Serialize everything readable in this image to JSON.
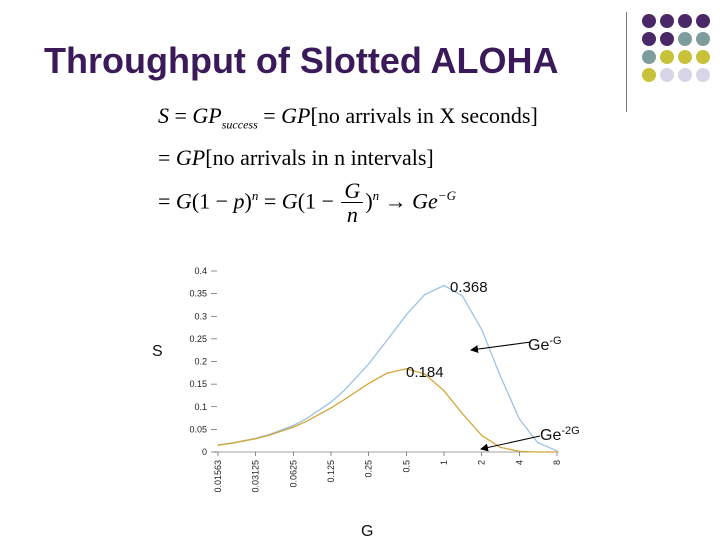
{
  "slide": {
    "title": "Throughput of Slotted ALOHA"
  },
  "decoration": {
    "dot_colors": {
      "purple": "#4a2766",
      "teal": "#7f9c9c",
      "olive": "#c8c23a",
      "lavender": "#d6d6e6"
    },
    "dot_rows": [
      [
        "purple",
        "purple",
        "purple",
        "purple"
      ],
      [
        "purple",
        "purple",
        "teal",
        "teal"
      ],
      [
        "teal",
        "olive",
        "olive",
        "olive"
      ],
      [
        "olive",
        "lavender",
        "lavender",
        "lavender"
      ]
    ]
  },
  "equations": {
    "line1": {
      "lhs": "S",
      "g1": "GP",
      "sub": "success",
      "g2": "GP",
      "text": "[no arrivals in X seconds]"
    },
    "line2": {
      "g": "GP",
      "text": "[no arrivals in n intervals]"
    },
    "line3": {
      "g1": "G",
      "p1": "(1 − ",
      "p": "p",
      "p2": ")",
      "n1": "n",
      "g2": "G",
      "p3": "(1 − ",
      "frac_num": "G",
      "frac_den": "n",
      "p4": ")",
      "n2": "n",
      "arrow": "→",
      "g3": "Ge",
      "exp": "−G"
    }
  },
  "chart_data": {
    "type": "line",
    "xlabel": "G",
    "ylabel": "S",
    "x_tick_labels": [
      "0.01563",
      "0.03125",
      "0.0625",
      "0.125",
      "0.25",
      "0.5",
      "1",
      "2",
      "4",
      "8"
    ],
    "x_scale": "log2",
    "ylim": [
      0,
      0.4
    ],
    "y_tick_labels": [
      "0",
      "0.05",
      "0.1",
      "0.15",
      "0.2",
      "0.25",
      "0.3",
      "0.35",
      "0.4"
    ],
    "grid": false,
    "x": [
      0.01563,
      0.02,
      0.03125,
      0.04,
      0.0625,
      0.08,
      0.125,
      0.16,
      0.25,
      0.35,
      0.5,
      0.7,
      1,
      1.4,
      2,
      2.8,
      4,
      5.6,
      8
    ],
    "series": [
      {
        "name": "Ge-G",
        "color": "#9cc3e4",
        "values": [
          0.0154,
          0.0196,
          0.0303,
          0.0384,
          0.0586,
          0.0738,
          0.1103,
          0.1363,
          0.1947,
          0.2466,
          0.3033,
          0.3476,
          0.3679,
          0.3452,
          0.2707,
          0.1702,
          0.0733,
          0.0207,
          0.0027
        ]
      },
      {
        "name": "Ge-2G",
        "color": "#d4a537",
        "values": [
          0.0151,
          0.0192,
          0.0293,
          0.0369,
          0.0551,
          0.0681,
          0.0974,
          0.116,
          0.1516,
          0.1739,
          0.1839,
          0.1726,
          0.1353,
          0.0851,
          0.0366,
          0.0105,
          0.0013,
          0.0001,
          0.0
        ]
      }
    ],
    "annotations": [
      {
        "text": "0.368",
        "x": 1,
        "y": 0.3679
      },
      {
        "text": "0.184",
        "x": 0.5,
        "y": 0.1839
      }
    ],
    "series_labels": [
      {
        "base": "Ge",
        "sup": "-G"
      },
      {
        "base": "Ge",
        "sup": "-2G"
      }
    ]
  }
}
